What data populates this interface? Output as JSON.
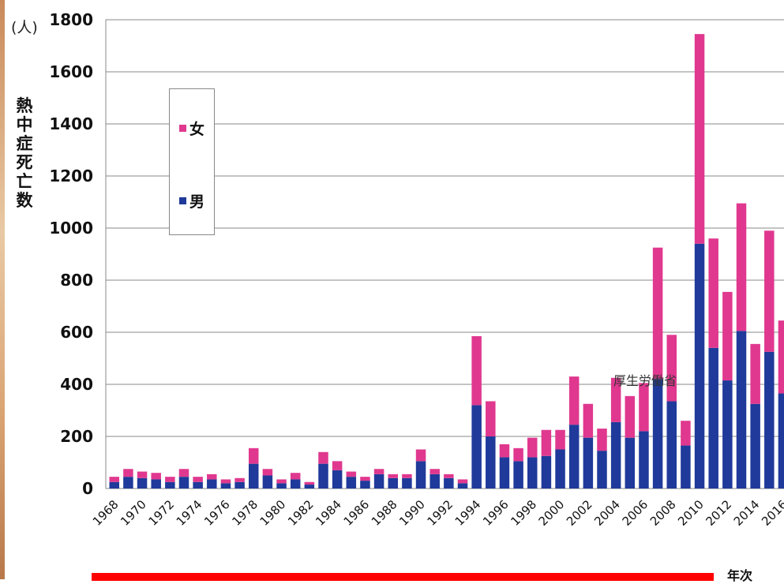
{
  "chart_data": {
    "type": "bar",
    "stacked": true,
    "unit": "(人)",
    "ylabel": "熱中症死亡数",
    "xlabel": "年次",
    "annotation": "厚生労働省",
    "ylim": [
      0,
      1800
    ],
    "yticks": [
      0,
      200,
      400,
      600,
      800,
      1000,
      1200,
      1400,
      1600,
      1800
    ],
    "grid": true,
    "legend_position": "top-left",
    "categories": [
      "1968",
      "1969",
      "1970",
      "1971",
      "1972",
      "1973",
      "1974",
      "1975",
      "1976",
      "1977",
      "1978",
      "1979",
      "1980",
      "1981",
      "1982",
      "1983",
      "1984",
      "1985",
      "1986",
      "1987",
      "1988",
      "1989",
      "1990",
      "1991",
      "1992",
      "1993",
      "1994",
      "1995",
      "1996",
      "1997",
      "1998",
      "1999",
      "2000",
      "2001",
      "2002",
      "2003",
      "2004",
      "2005",
      "2006",
      "2007",
      "2008",
      "2009",
      "2010",
      "2011",
      "2012",
      "2013",
      "2014",
      "2015",
      "2016"
    ],
    "xtick_labels": [
      "1968",
      "1970",
      "1972",
      "1974",
      "1976",
      "1978",
      "1980",
      "1982",
      "1984",
      "1986",
      "1988",
      "1990",
      "1992",
      "1994",
      "1996",
      "1998",
      "2000",
      "2002",
      "2004",
      "2006",
      "2008",
      "2010",
      "2012",
      "2014",
      "2016"
    ],
    "series": [
      {
        "name": "男",
        "color": "#1f3a9a",
        "values": [
          25,
          45,
          40,
          35,
          25,
          45,
          25,
          35,
          20,
          25,
          95,
          50,
          20,
          35,
          15,
          95,
          70,
          45,
          30,
          55,
          40,
          40,
          105,
          55,
          40,
          20,
          320,
          200,
          120,
          105,
          120,
          125,
          150,
          245,
          195,
          145,
          255,
          195,
          220,
          420,
          335,
          165,
          940,
          540,
          415,
          605,
          325,
          525,
          365
        ]
      },
      {
        "name": "女",
        "color": "#e0388f",
        "values": [
          20,
          30,
          25,
          25,
          20,
          30,
          20,
          20,
          15,
          15,
          60,
          25,
          15,
          25,
          10,
          45,
          35,
          20,
          15,
          20,
          15,
          15,
          45,
          20,
          15,
          15,
          265,
          135,
          50,
          50,
          75,
          100,
          75,
          185,
          130,
          85,
          170,
          160,
          185,
          505,
          255,
          95,
          805,
          420,
          340,
          490,
          230,
          465,
          280
        ]
      }
    ]
  }
}
